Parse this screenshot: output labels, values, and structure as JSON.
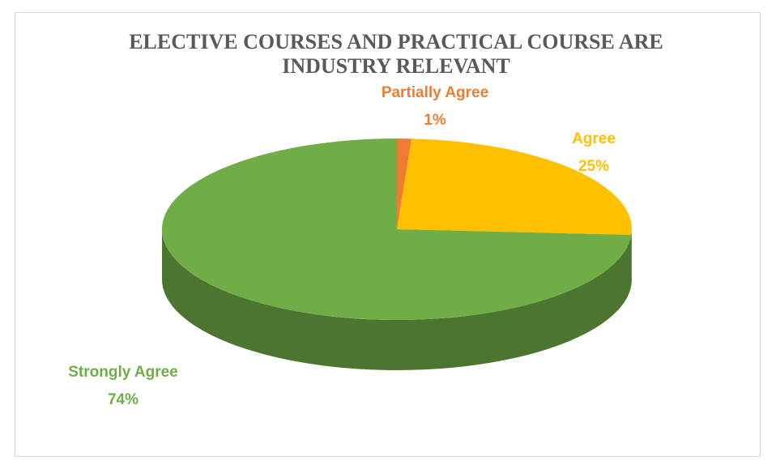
{
  "chart_data": {
    "type": "pie",
    "title": "ELECTIVE COURSES AND PRACTICAL COURSE ARE INDUSTRY RELEVANT",
    "categories": [
      "Partially Agree",
      "Agree",
      "Strongly Agree"
    ],
    "values": [
      1,
      25,
      74
    ],
    "value_labels": [
      "1%",
      "25%",
      "74%"
    ],
    "colors": [
      "#ED7D31",
      "#FFC000",
      "#70AD47"
    ]
  }
}
